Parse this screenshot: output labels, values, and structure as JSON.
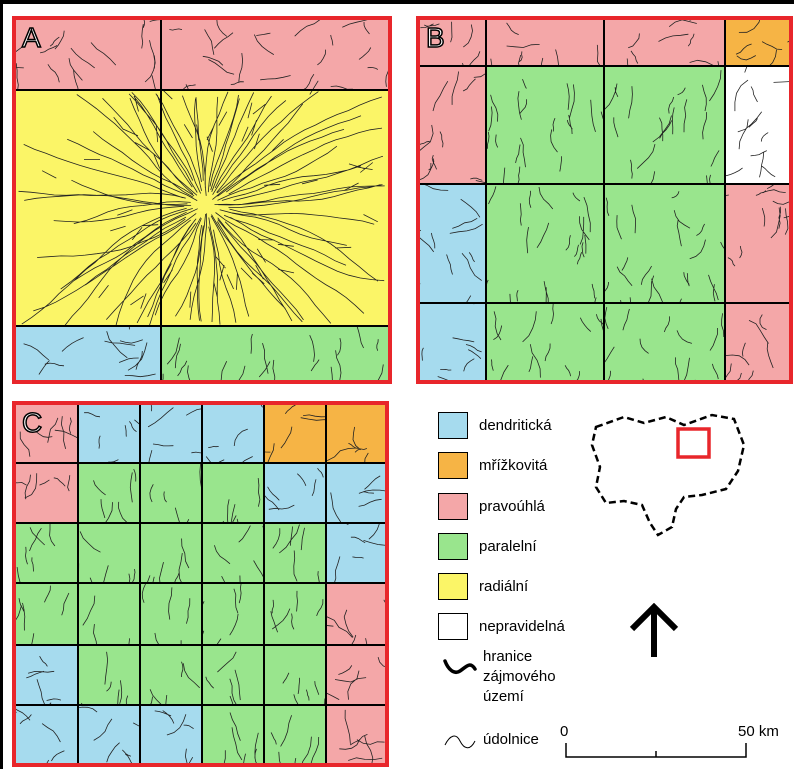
{
  "panels": [
    {
      "id": "a",
      "letter": "A"
    },
    {
      "id": "b",
      "letter": "B"
    },
    {
      "id": "c",
      "letter": "C"
    }
  ],
  "colors": {
    "dendritic": "#a6dbee",
    "trellis": "#f6b445",
    "rectangular": "#f4a7a8",
    "parallel": "#99e58d",
    "radial": "#fbf567",
    "irregular": "#ffffff",
    "frame": "#e8262b"
  },
  "legend": {
    "items": [
      {
        "key": "dendritic",
        "label": "dendritická"
      },
      {
        "key": "trellis",
        "label": "mřížkovitá"
      },
      {
        "key": "rectangular",
        "label": "pravoúhlá"
      },
      {
        "key": "parallel",
        "label": "paralelní"
      },
      {
        "key": "radial",
        "label": "radiální"
      },
      {
        "key": "irregular",
        "label": "nepravidelná"
      }
    ],
    "boundary_label": [
      "hranice",
      "zájmového",
      "území"
    ],
    "valley_label": "údolnice"
  },
  "scale": {
    "start": "0",
    "end": "50 km"
  }
}
